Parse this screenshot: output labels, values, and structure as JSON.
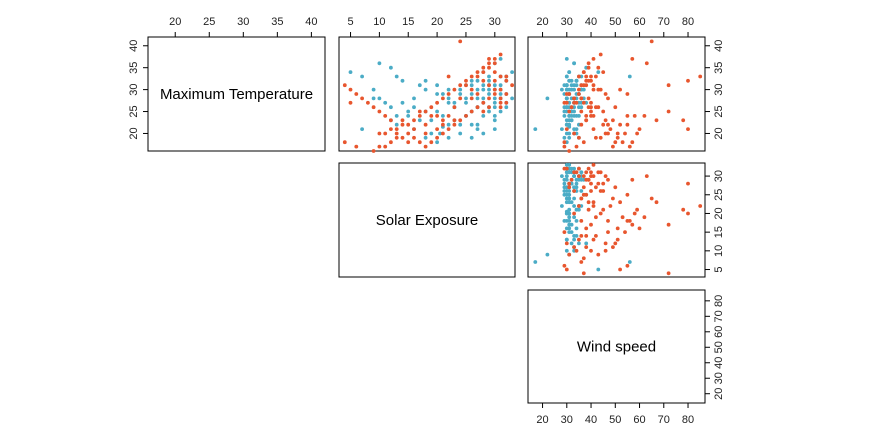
{
  "chart_data": {
    "type": "scatter",
    "plot_kind": "scatterplot-matrix",
    "variables": [
      "Maximum Temperature",
      "Solar Exposure",
      "Wind speed"
    ],
    "ranges": {
      "Maximum Temperature": [
        16.0,
        42.0
      ],
      "Solar Exposure": [
        3.0,
        33.5
      ],
      "Wind speed": [
        14.0,
        87.0
      ]
    },
    "ticks": {
      "Maximum Temperature": [
        20,
        25,
        30,
        35,
        40
      ],
      "Solar Exposure": [
        5,
        10,
        15,
        20,
        25,
        30
      ],
      "Wind speed": [
        20,
        30,
        40,
        50,
        60,
        70,
        80
      ]
    },
    "colors": {
      "teal": "#4bacc6",
      "orange": "#e8562e"
    },
    "series": [
      {
        "color": "teal",
        "points": [
          [
            20,
            20.5,
            30
          ],
          [
            21.5,
            21,
            31
          ],
          [
            22,
            24,
            30
          ],
          [
            23,
            23,
            32
          ],
          [
            24,
            25,
            31
          ],
          [
            25,
            29,
            30
          ],
          [
            19,
            26,
            29
          ],
          [
            22,
            27,
            31
          ],
          [
            24,
            28,
            32
          ],
          [
            26,
            27,
            33
          ],
          [
            20,
            28,
            34
          ],
          [
            21,
            30,
            28
          ],
          [
            23,
            30,
            30
          ],
          [
            25,
            31,
            32
          ],
          [
            27,
            32,
            33
          ],
          [
            28,
            33,
            30
          ],
          [
            29,
            31,
            31
          ],
          [
            31,
            30,
            33
          ],
          [
            33,
            29,
            35
          ],
          [
            30,
            28,
            32
          ],
          [
            32,
            27,
            34
          ],
          [
            34,
            28,
            31
          ],
          [
            26,
            29,
            36
          ],
          [
            25,
            26,
            33
          ],
          [
            24,
            25,
            29
          ],
          [
            22,
            26,
            30
          ],
          [
            20,
            24,
            31
          ],
          [
            19,
            22,
            35
          ],
          [
            18,
            20,
            30
          ],
          [
            19,
            18,
            31
          ],
          [
            20,
            19,
            33
          ],
          [
            21,
            16,
            34
          ],
          [
            22,
            13,
            30
          ],
          [
            24,
            15,
            31
          ],
          [
            23,
            12,
            32
          ],
          [
            26,
            12,
            35
          ],
          [
            27,
            11,
            33
          ],
          [
            28,
            10,
            30
          ],
          [
            30,
            9,
            31
          ],
          [
            32,
            18,
            34
          ],
          [
            28,
            25,
            37
          ],
          [
            27,
            22,
            36
          ],
          [
            30,
            30,
            36
          ],
          [
            31,
            31,
            30
          ],
          [
            32,
            32,
            31
          ],
          [
            29,
            29,
            29
          ],
          [
            28,
            28,
            32
          ],
          [
            31,
            29,
            34
          ],
          [
            33,
            31,
            36
          ],
          [
            36,
            30,
            33
          ],
          [
            37,
            31,
            30
          ],
          [
            26,
            30,
            30
          ],
          [
            30,
            22,
            28
          ],
          [
            29,
            26,
            34
          ],
          [
            28,
            27,
            30
          ],
          [
            27,
            28,
            31
          ],
          [
            30,
            24,
            33
          ],
          [
            31,
            28,
            29
          ],
          [
            32,
            26,
            31
          ],
          [
            28,
            30,
            33
          ],
          [
            29,
            32,
            35
          ],
          [
            30,
            31,
            36
          ],
          [
            27,
            25,
            38
          ],
          [
            26,
            23,
            30
          ],
          [
            25,
            20,
            31
          ],
          [
            24,
            21,
            34
          ],
          [
            31,
            25,
            30
          ],
          [
            30,
            29,
            37
          ],
          [
            29,
            20,
            31
          ],
          [
            28,
            16,
            30
          ],
          [
            27,
            14,
            33
          ],
          [
            25,
            15,
            32
          ],
          [
            23,
            19,
            31
          ],
          [
            22,
            22,
            35
          ],
          [
            21,
            27,
            33
          ],
          [
            26,
            32,
            32
          ],
          [
            27,
            30,
            35
          ],
          [
            28,
            31,
            34
          ],
          [
            29,
            24,
            31
          ],
          [
            30,
            27,
            30
          ],
          [
            31,
            26,
            36
          ],
          [
            32,
            29,
            32
          ],
          [
            33,
            32,
            30
          ],
          [
            34,
            33,
            31
          ],
          [
            26,
            27,
            29
          ],
          [
            27,
            23,
            31
          ],
          [
            28,
            22,
            33
          ],
          [
            29,
            21,
            35
          ],
          [
            30,
            18,
            30
          ],
          [
            31,
            17,
            32
          ],
          [
            32,
            14,
            34
          ],
          [
            33,
            13,
            30
          ],
          [
            35,
            12,
            38
          ],
          [
            36,
            10,
            33
          ],
          [
            34,
            5,
            43
          ],
          [
            33,
            7,
            56
          ],
          [
            21,
            7,
            17
          ],
          [
            28,
            9,
            22
          ],
          [
            24,
            13,
            33
          ],
          [
            23,
            17,
            31
          ],
          [
            25,
            18,
            29
          ],
          [
            26,
            16,
            31
          ],
          [
            24,
            30,
            35
          ],
          [
            31,
            20,
            30
          ]
        ]
      },
      {
        "color": "orange",
        "points": [
          [
            27,
            5,
            30
          ],
          [
            18,
            4,
            37
          ],
          [
            17,
            6,
            29
          ],
          [
            16,
            9,
            31
          ],
          [
            17,
            10,
            34
          ],
          [
            20,
            11,
            33
          ],
          [
            21,
            12,
            30
          ],
          [
            19,
            13,
            35
          ],
          [
            22,
            14,
            36
          ],
          [
            18,
            15,
            29
          ],
          [
            23,
            16,
            38
          ],
          [
            24,
            17,
            40
          ],
          [
            25,
            18,
            36
          ],
          [
            26,
            19,
            42
          ],
          [
            27,
            20,
            33
          ],
          [
            28,
            21,
            39
          ],
          [
            29,
            22,
            35
          ],
          [
            30,
            23,
            41
          ],
          [
            31,
            24,
            36
          ],
          [
            32,
            25,
            38
          ],
          [
            33,
            26,
            40
          ],
          [
            34,
            27,
            37
          ],
          [
            35,
            28,
            43
          ],
          [
            36,
            29,
            39
          ],
          [
            37,
            30,
            41
          ],
          [
            38,
            31,
            44
          ],
          [
            41,
            24,
            65
          ],
          [
            37,
            29,
            57
          ],
          [
            36,
            30,
            63
          ],
          [
            34,
            28,
            45
          ],
          [
            32,
            32,
            39
          ],
          [
            31,
            33,
            41
          ],
          [
            33,
            31,
            38
          ],
          [
            30,
            31,
            43
          ],
          [
            29,
            30,
            46
          ],
          [
            28,
            29,
            47
          ],
          [
            27,
            28,
            40
          ],
          [
            26,
            27,
            50
          ],
          [
            25,
            26,
            45
          ],
          [
            24,
            25,
            55
          ],
          [
            23,
            24,
            49
          ],
          [
            22,
            23,
            52
          ],
          [
            21,
            22,
            48
          ],
          [
            20,
            21,
            59
          ],
          [
            19,
            20,
            44
          ],
          [
            18,
            19,
            53
          ],
          [
            17,
            18,
            56
          ],
          [
            21,
            16,
            60
          ],
          [
            22,
            15,
            47
          ],
          [
            19,
            14,
            42
          ],
          [
            20,
            13,
            51
          ],
          [
            23,
            12,
            46
          ],
          [
            24,
            11,
            38
          ],
          [
            25,
            10,
            40
          ],
          [
            26,
            9,
            43
          ],
          [
            27,
            8,
            37
          ],
          [
            28,
            7,
            36
          ],
          [
            29,
            6,
            55
          ],
          [
            30,
            5,
            52
          ],
          [
            31,
            4,
            72
          ],
          [
            32,
            28,
            80
          ],
          [
            33,
            22,
            85
          ],
          [
            30,
            30,
            35
          ],
          [
            29,
            27,
            31
          ],
          [
            28,
            31,
            33
          ],
          [
            31,
            25,
            37
          ],
          [
            27,
            32,
            29
          ],
          [
            26,
            31,
            40
          ],
          [
            34,
            30,
            37
          ],
          [
            35,
            29,
            39
          ],
          [
            33,
            27,
            42
          ],
          [
            30,
            26,
            44
          ],
          [
            28,
            24,
            36
          ],
          [
            26,
            23,
            39
          ],
          [
            24,
            22,
            41
          ],
          [
            22,
            21,
            45
          ],
          [
            20,
            18,
            47
          ],
          [
            18,
            17,
            57
          ],
          [
            24,
            19,
            62
          ],
          [
            25,
            17,
            72
          ],
          [
            23,
            21,
            78
          ],
          [
            21,
            20,
            80
          ],
          [
            20,
            15,
            54
          ],
          [
            19,
            16,
            51
          ],
          [
            18,
            12,
            50
          ],
          [
            17,
            11,
            49
          ],
          [
            20,
            10,
            46
          ],
          [
            21,
            13,
            41
          ],
          [
            23,
            14,
            38
          ],
          [
            22,
            18,
            55
          ],
          [
            25,
            28,
            31
          ],
          [
            26,
            29,
            32
          ],
          [
            27,
            31,
            34
          ],
          [
            29,
            32,
            30
          ],
          [
            28,
            26,
            33
          ],
          [
            31,
            29,
            38
          ],
          [
            32,
            30,
            40
          ],
          [
            33,
            32,
            35
          ],
          [
            24,
            20,
            58
          ],
          [
            23,
            23,
            67
          ]
        ]
      }
    ]
  }
}
